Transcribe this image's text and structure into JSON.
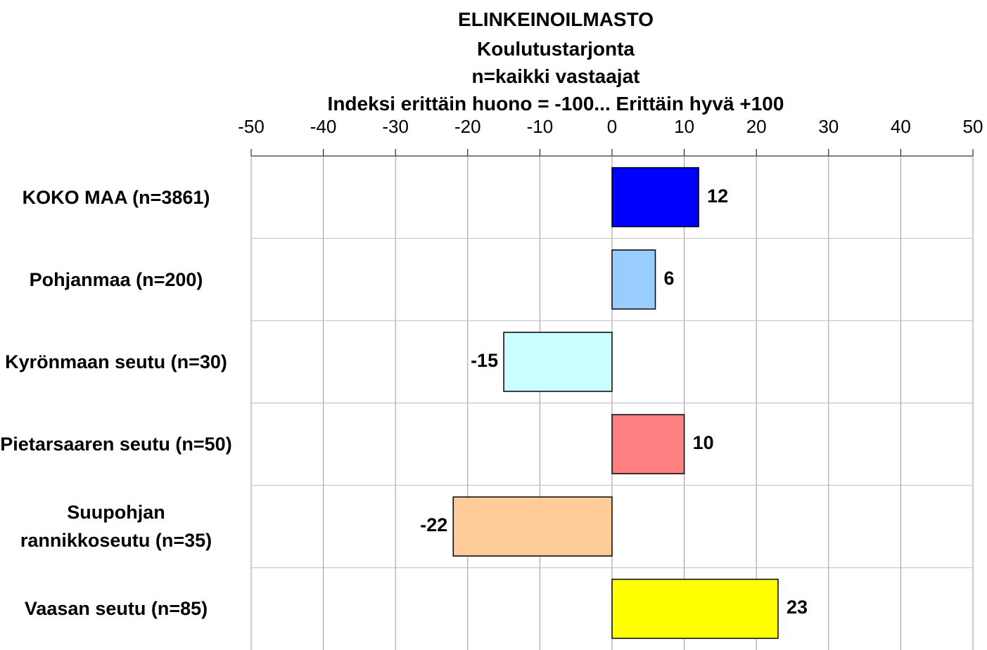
{
  "chart_data": {
    "type": "bar",
    "orientation": "horizontal",
    "title": "ELINKEINOILMASTO",
    "subtitles": [
      "Koulutustarjonta",
      "n=kaikki vastaajat",
      "Indeksi erittäin huono = -100... Erittäin hyvä +100"
    ],
    "categories": [
      "KOKO MAA (n=3861)",
      "Pohjanmaa (n=200)",
      "Kyrönmaan seutu (n=30)",
      "Pietarsaaren seutu (n=50)",
      "Suupohjan rannikkoseutu (n=35)",
      "Vaasan seutu (n=85)"
    ],
    "values": [
      12,
      6,
      -15,
      10,
      -22,
      23
    ],
    "colors": [
      "#0000ff",
      "#99ccff",
      "#ccffff",
      "#ff8080",
      "#ffcc99",
      "#ffff00"
    ],
    "xlim": [
      -50,
      50
    ],
    "xticks": [
      -50,
      -40,
      -30,
      -20,
      -10,
      0,
      10,
      20,
      30,
      40,
      50
    ],
    "grid": true,
    "x_axis_position": "top"
  }
}
